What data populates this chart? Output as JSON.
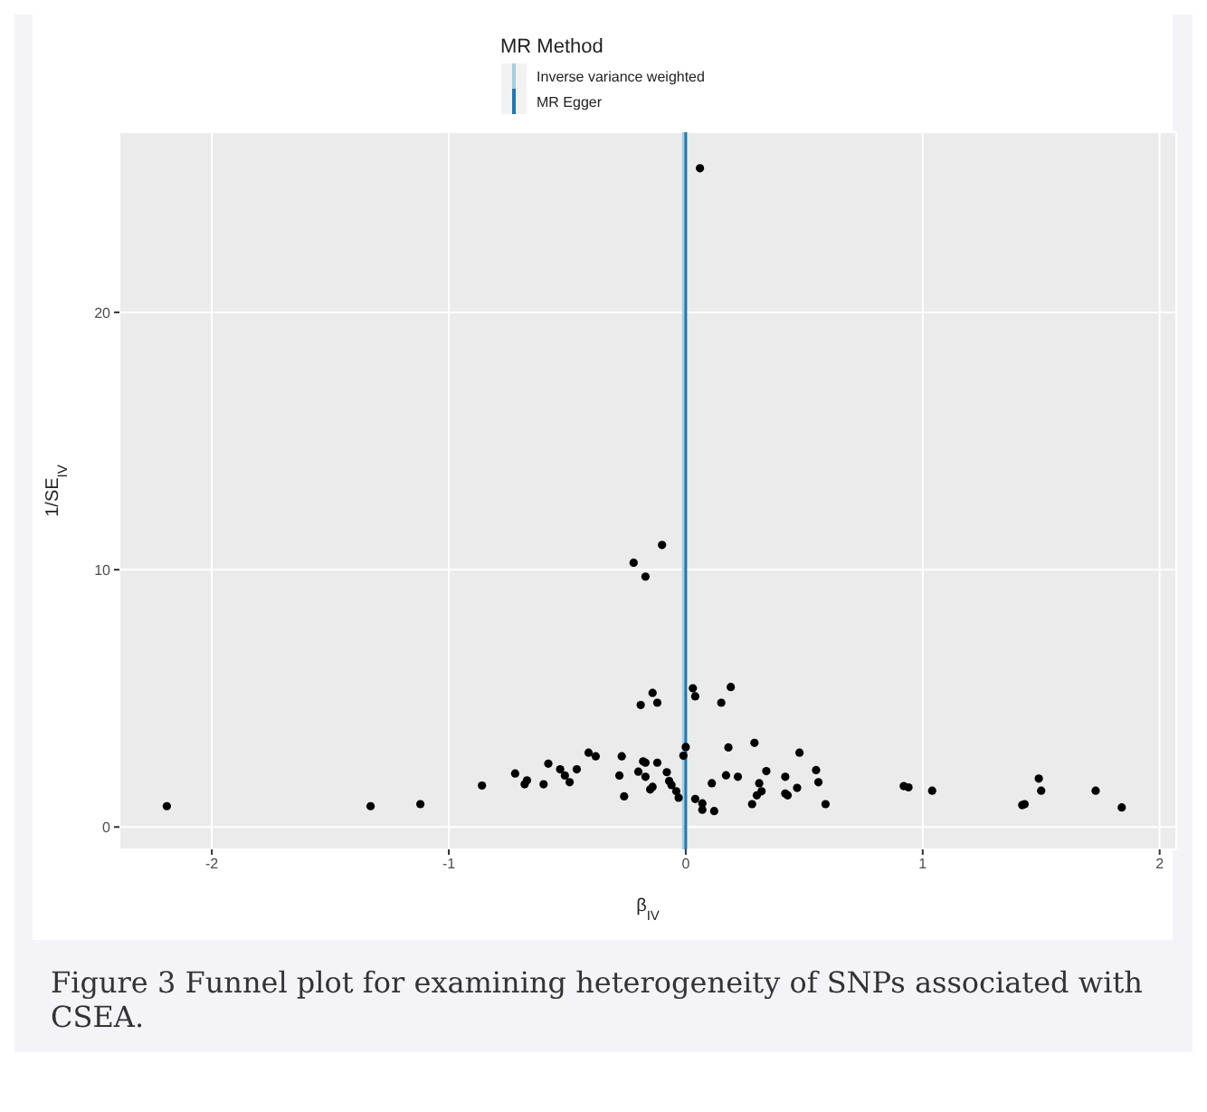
{
  "chart_data": {
    "type": "scatter",
    "xlabel": "β$_{IV}$",
    "ylabel": "1/SE$_{IV}$",
    "legend_title": "MR Method",
    "legend": "top",
    "grid": true,
    "marker": "circle",
    "xlim": [
      -2.39,
      2.07
    ],
    "xticks": [
      -2,
      -1,
      0,
      1,
      2
    ],
    "ylim": [
      -0.87,
      27
    ],
    "yticks": [
      0,
      10,
      20
    ],
    "ref_lines": [
      {
        "axis": "x",
        "value": -0.01,
        "label": "Inverse variance weighted",
        "color": "#a6cee3"
      },
      {
        "axis": "x",
        "value": 0.0,
        "label": "MR Egger",
        "color": "#1f78b4"
      }
    ],
    "annotations": [
      "Figure 3 Funnel plot for examining heterogeneity of SNPs associated with CSEA."
    ],
    "series": [
      {
        "color": "#000000",
        "x": [
          -2.19,
          -1.33,
          -1.12,
          -0.86,
          -0.72,
          -0.68,
          -0.67,
          -0.6,
          -0.58,
          -0.53,
          -0.51,
          -0.49,
          -0.46,
          -0.41,
          -0.38,
          -0.28,
          -0.27,
          -0.26,
          -0.19,
          -0.14,
          -0.12,
          -0.2,
          -0.18,
          -0.17,
          -0.17,
          -0.15,
          -0.14,
          -0.12,
          -0.08,
          -0.07,
          -0.06,
          -0.04,
          -0.03,
          -0.01,
          0.0,
          0.03,
          0.04,
          0.04,
          0.07,
          0.07,
          0.12,
          0.11,
          0.15,
          0.19,
          0.18,
          0.17,
          0.22,
          0.29,
          0.28,
          0.3,
          0.31,
          0.32,
          0.34,
          0.42,
          0.42,
          0.43,
          0.47,
          0.48,
          0.55,
          0.56,
          0.59,
          0.92,
          0.94,
          1.04,
          1.42,
          1.43,
          1.49,
          1.5,
          1.73,
          1.84,
          0.06,
          -0.1,
          -0.22,
          -0.17
        ],
        "values": [
          0.81,
          0.81,
          0.89,
          1.61,
          2.08,
          1.66,
          1.81,
          1.66,
          2.46,
          2.24,
          2.0,
          1.74,
          2.24,
          2.89,
          2.75,
          2.0,
          2.75,
          1.19,
          4.74,
          5.21,
          4.83,
          2.15,
          2.55,
          2.5,
          1.95,
          1.46,
          1.56,
          2.5,
          2.13,
          1.79,
          1.63,
          1.39,
          1.14,
          2.77,
          3.11,
          5.39,
          5.08,
          1.09,
          0.92,
          0.67,
          0.62,
          1.7,
          4.83,
          5.44,
          3.09,
          2.01,
          1.95,
          3.27,
          0.89,
          1.23,
          1.7,
          1.39,
          2.17,
          1.95,
          1.3,
          1.23,
          1.52,
          2.89,
          2.21,
          1.74,
          0.89,
          1.59,
          1.54,
          1.41,
          0.85,
          0.89,
          1.88,
          1.41,
          1.41,
          0.76,
          25.6,
          10.96,
          10.27,
          9.73
        ]
      }
    ]
  }
}
